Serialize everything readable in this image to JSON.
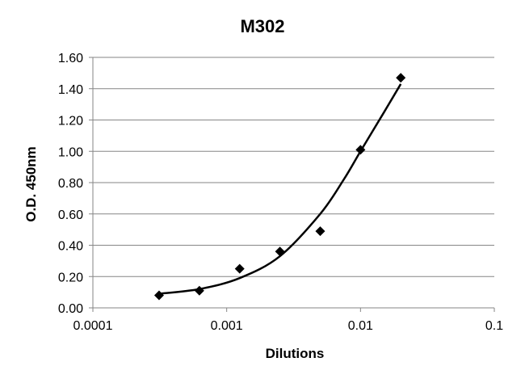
{
  "chart_data": {
    "type": "scatter",
    "title": "M302",
    "xlabel": "Dilutions",
    "ylabel": "O.D. 450nm",
    "x_scale": "log",
    "xlim": [
      0.0001,
      0.1
    ],
    "ylim": [
      0,
      1.6
    ],
    "x_ticks": [
      0.0001,
      0.001,
      0.01,
      0.1
    ],
    "x_tick_labels": [
      "0.0001",
      "0.001",
      "0.01",
      "0.1"
    ],
    "y_ticks": [
      0,
      0.2,
      0.4,
      0.6,
      0.8,
      1.0,
      1.2,
      1.4,
      1.6
    ],
    "y_tick_labels": [
      "0.00",
      "0.20",
      "0.40",
      "0.60",
      "0.80",
      "1.00",
      "1.20",
      "1.40",
      "1.60"
    ],
    "grid": "horizontal",
    "legend": "none",
    "marker": "diamond",
    "points": [
      {
        "x": 0.0003125,
        "y": 0.08
      },
      {
        "x": 0.000625,
        "y": 0.11
      },
      {
        "x": 0.00125,
        "y": 0.25
      },
      {
        "x": 0.0025,
        "y": 0.36
      },
      {
        "x": 0.005,
        "y": 0.49
      },
      {
        "x": 0.01,
        "y": 1.01
      },
      {
        "x": 0.02,
        "y": 1.47
      }
    ],
    "fit_curve": {
      "x": [
        0.0003125,
        0.000625,
        0.00125,
        0.0025,
        0.005,
        0.0075,
        0.01,
        0.015,
        0.02
      ],
      "y": [
        0.09,
        0.12,
        0.19,
        0.33,
        0.6,
        0.82,
        1.0,
        1.25,
        1.43
      ]
    }
  }
}
